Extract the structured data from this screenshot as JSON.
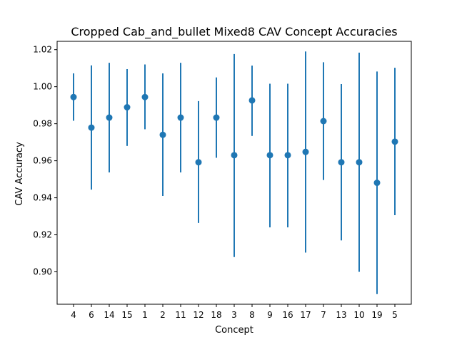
{
  "chart_data": {
    "type": "scatter",
    "title": "Cropped Cab_and_bullet Mixed8 CAV Concept Accuracies",
    "xlabel": "Concept",
    "ylabel": "CAV Accuracy",
    "categories": [
      "4",
      "6",
      "14",
      "15",
      "1",
      "2",
      "11",
      "12",
      "18",
      "3",
      "8",
      "9",
      "16",
      "17",
      "7",
      "13",
      "10",
      "19",
      "5"
    ],
    "values": [
      0.9944,
      0.9779,
      0.9833,
      0.9889,
      0.9944,
      0.974,
      0.9833,
      0.9592,
      0.9833,
      0.963,
      0.9926,
      0.963,
      0.963,
      0.9648,
      0.9814,
      0.9592,
      0.9592,
      0.9481,
      0.9703
    ],
    "error_low": [
      0.9816,
      0.9444,
      0.9537,
      0.968,
      0.977,
      0.941,
      0.9537,
      0.9264,
      0.9616,
      0.908,
      0.9734,
      0.924,
      0.924,
      0.9104,
      0.9496,
      0.917,
      0.9,
      0.888,
      0.9306
    ],
    "error_high": [
      1.0072,
      1.0115,
      1.0129,
      1.0095,
      1.012,
      1.0072,
      1.0129,
      0.9922,
      1.005,
      1.0176,
      1.0114,
      1.0016,
      1.0016,
      1.019,
      1.0132,
      1.0014,
      1.0184,
      1.0082,
      1.0102
    ],
    "yticks": [
      0.9,
      0.92,
      0.94,
      0.96,
      0.98,
      1.0,
      1.02
    ],
    "ytick_labels": [
      "0.90",
      "0.92",
      "0.94",
      "0.96",
      "0.98",
      "1.00",
      "1.02"
    ],
    "ylim": [
      0.8825,
      1.0245
    ],
    "grid": false,
    "color": "#1f77b4"
  }
}
